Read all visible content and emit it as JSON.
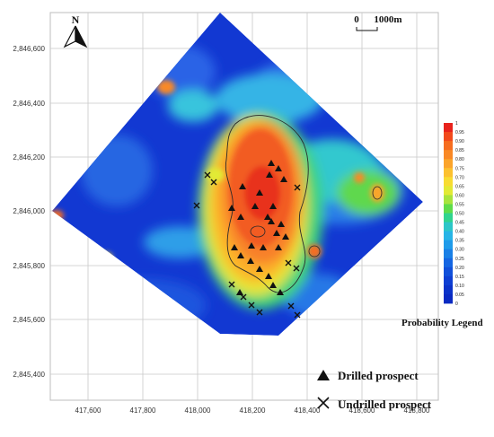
{
  "map": {
    "y_ticks": [
      "2,846,600",
      "2,846,400",
      "2,846,200",
      "2,846,000",
      "2,845,800",
      "2,845,600",
      "2,845,400"
    ],
    "x_ticks": [
      "417,600",
      "417,800",
      "418,000",
      "418,200",
      "418,400",
      "418,600",
      "418,800"
    ],
    "north_label": "N",
    "scale_bar": {
      "start_label": "0",
      "end_label": "1000m"
    },
    "drilled_label": "Drilled prospect",
    "undrilled_label": "Undrilled prospect"
  },
  "legend": {
    "title": "Probability Legend",
    "ticks": [
      "1",
      "0.95",
      "0.90",
      "0.85",
      "0.80",
      "0.75",
      "0.70",
      "0.65",
      "0.60",
      "0.55",
      "0.50",
      "0.45",
      "0.40",
      "0.35",
      "0.30",
      "0.25",
      "0.20",
      "0.15",
      "0.10",
      "0.05",
      "0"
    ],
    "colors": [
      "#e8231c",
      "#f24a1c",
      "#f66d20",
      "#f98926",
      "#fba42b",
      "#fcc130",
      "#f8dc33",
      "#e2ea36",
      "#a8e43e",
      "#5fdc4a",
      "#30d48e",
      "#2cc6c8",
      "#27b4e6",
      "#1f9bea",
      "#1a80e6",
      "#1566e2",
      "#1150da",
      "#0e3fd3",
      "#0b33c9",
      "#0a2ac2"
    ]
  }
}
